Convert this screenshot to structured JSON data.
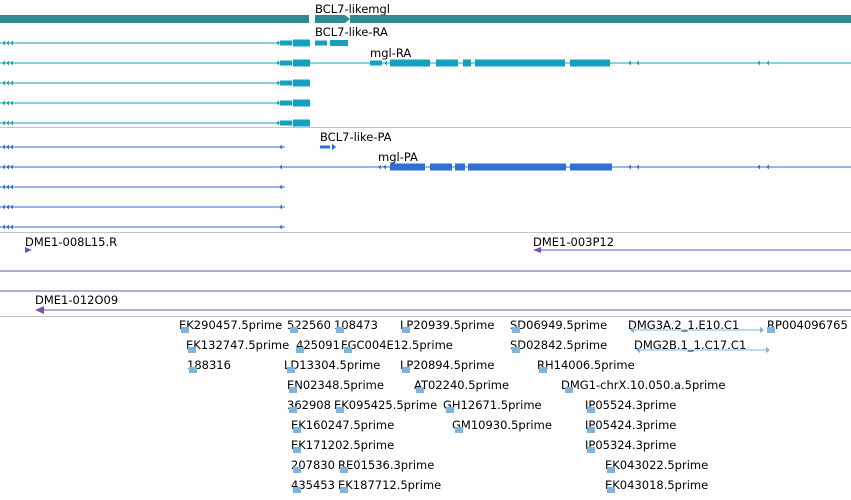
{
  "colors": {
    "gene": "#2e8b96",
    "transcript_ra": "#17a0bd",
    "transcript_pa": "#2f6fd6",
    "clone": "#7d50b0",
    "est": "#7fb4db",
    "separator": "#c4c4c4",
    "label": "#000000"
  },
  "tracks": {
    "gene": {
      "label": "BCL7-likemgl"
    },
    "rna": [
      {
        "label": "BCL7-like-RA"
      },
      {
        "label": "mgl-RA"
      }
    ],
    "protein": [
      {
        "label": "BCL7-like-PA"
      },
      {
        "label": "mgl-PA"
      }
    ],
    "clones": [
      {
        "label": "DME1-008L15.R"
      },
      {
        "label": "DME1-003P12"
      },
      {
        "label": "DME1-012O09"
      }
    ],
    "ests": [
      "EK290457.5prime",
      "522560",
      "108473",
      "LP20939.5prime",
      "SD06949.5prime",
      "DMG3A.2_1.E10.C1",
      "RP004096765",
      "EK132747.5prime",
      "425091",
      "FGC004E12.5prime",
      "SD02842.5prime",
      "DMG2B.1_1.C17.C1",
      "188316",
      "LD13304.5prime",
      "LP20894.5prime",
      "RH14006.5prime",
      "EN02348.5prime",
      "AT02240.5prime",
      "DMG1-chrX.10.050.a.5prime",
      "362908",
      "EK095425.5prime",
      "GH12671.5prime",
      "IP05524.3prime",
      "EK160247.5prime",
      "GM10930.5prime",
      "IP05424.3prime",
      "EK171202.5prime",
      "IP05324.3prime",
      "207830",
      "RE01536.3prime",
      "EK043022.5prime",
      "435453",
      "EK187712.5prime",
      "EK043018.5prime"
    ]
  }
}
